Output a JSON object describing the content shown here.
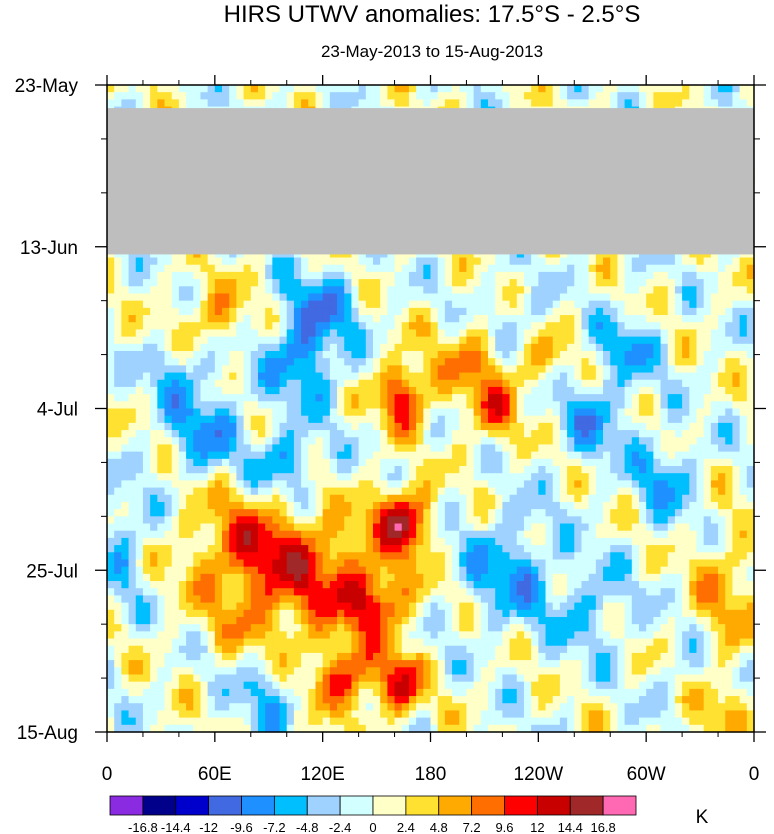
{
  "chart_data": {
    "type": "heatmap",
    "title": "HIRS UTWV anomalies: 17.5°S - 2.5°S",
    "subtitle": "23-May-2013 to 15-Aug-2013",
    "xlabel": "",
    "ylabel": "",
    "x_ticks": [
      "0",
      "60E",
      "120E",
      "180",
      "120W",
      "60W",
      "0"
    ],
    "x_tick_values": [
      0,
      60,
      120,
      180,
      240,
      300,
      360
    ],
    "xlim": [
      0,
      360
    ],
    "y_ticks": [
      "23-May",
      "13-Jun",
      "4-Jul",
      "25-Jul",
      "15-Aug"
    ],
    "y_tick_days": [
      0,
      21,
      42,
      63,
      84
    ],
    "ylim_days": [
      0,
      84
    ],
    "missing_band_days": [
      3,
      22
    ],
    "missing_color": "#bebebe",
    "colorbar_unit": "K",
    "colorbar_labels": [
      "-16.8",
      "-14.4",
      "-12",
      "-9.6",
      "-7.2",
      "-4.8",
      "-2.4",
      "0",
      "2.4",
      "4.8",
      "7.2",
      "9.6",
      "12",
      "14.4",
      "16.8"
    ],
    "colorbar_colors": [
      "#8a2be2",
      "#00008b",
      "#0000cd",
      "#4169e1",
      "#1e90ff",
      "#00bfff",
      "#a0d2ff",
      "#d2ffff",
      "#ffffc8",
      "#ffe132",
      "#ffaa00",
      "#ff6e00",
      "#ff0000",
      "#c80000",
      "#a02828",
      "#ff69b4"
    ],
    "features": [
      {
        "x": 165,
        "day": 40,
        "sx": 10,
        "sy": 3,
        "amp": 12
      },
      {
        "x": 160,
        "day": 56,
        "sx": 10,
        "sy": 3,
        "amp": 9
      },
      {
        "x": 170,
        "day": 57,
        "sx": 8,
        "sy": 3,
        "amp": 8
      },
      {
        "x": 150,
        "day": 67,
        "sx": 14,
        "sy": 3,
        "amp": 11
      },
      {
        "x": 135,
        "day": 77,
        "sx": 14,
        "sy": 3,
        "amp": 10
      },
      {
        "x": 165,
        "day": 78,
        "sx": 8,
        "sy": 3,
        "amp": 10
      },
      {
        "x": 80,
        "day": 60,
        "sx": 25,
        "sy": 5,
        "amp": 9
      },
      {
        "x": 95,
        "day": 70,
        "sx": 25,
        "sy": 6,
        "amp": 6
      },
      {
        "x": 60,
        "day": 30,
        "sx": 15,
        "sy": 3,
        "amp": 6
      },
      {
        "x": 205,
        "day": 36,
        "sx": 15,
        "sy": 4,
        "amp": 6
      },
      {
        "x": 215,
        "day": 43,
        "sx": 10,
        "sy": 3,
        "amp": 6
      },
      {
        "x": 345,
        "day": 66,
        "sx": 14,
        "sy": 6,
        "amp": 5
      },
      {
        "x": 335,
        "day": 80,
        "sx": 12,
        "sy": 4,
        "amp": 5
      },
      {
        "x": 125,
        "day": 62,
        "sx": 20,
        "sy": 4,
        "amp": 6
      },
      {
        "x": 240,
        "day": 35,
        "sx": 12,
        "sy": 4,
        "amp": 5
      },
      {
        "x": 110,
        "day": 35,
        "sx": 15,
        "sy": 4,
        "amp": -9
      },
      {
        "x": 100,
        "day": 49,
        "sx": 12,
        "sy": 3,
        "amp": -8
      },
      {
        "x": 55,
        "day": 45,
        "sx": 15,
        "sy": 4,
        "amp": -7
      },
      {
        "x": 120,
        "day": 28,
        "sx": 15,
        "sy": 3,
        "amp": -6
      },
      {
        "x": 225,
        "day": 63,
        "sx": 18,
        "sy": 5,
        "amp": -7
      },
      {
        "x": 90,
        "day": 78,
        "sx": 15,
        "sy": 4,
        "amp": -7
      },
      {
        "x": 230,
        "day": 31,
        "sx": 12,
        "sy": 3,
        "amp": -6
      },
      {
        "x": 270,
        "day": 43,
        "sx": 15,
        "sy": 4,
        "amp": -6
      },
      {
        "x": 310,
        "day": 51,
        "sx": 12,
        "sy": 4,
        "amp": -6
      },
      {
        "x": 290,
        "day": 34,
        "sx": 12,
        "sy": 3,
        "amp": -6
      },
      {
        "x": 10,
        "day": 60,
        "sx": 10,
        "sy": 5,
        "amp": -5
      },
      {
        "x": 325,
        "day": 77,
        "sx": 10,
        "sy": 3,
        "amp": -5
      },
      {
        "x": 270,
        "day": 68,
        "sx": 15,
        "sy": 4,
        "amp": -5
      },
      {
        "x": 40,
        "day": 37,
        "sx": 12,
        "sy": 3,
        "amp": -5
      }
    ]
  }
}
